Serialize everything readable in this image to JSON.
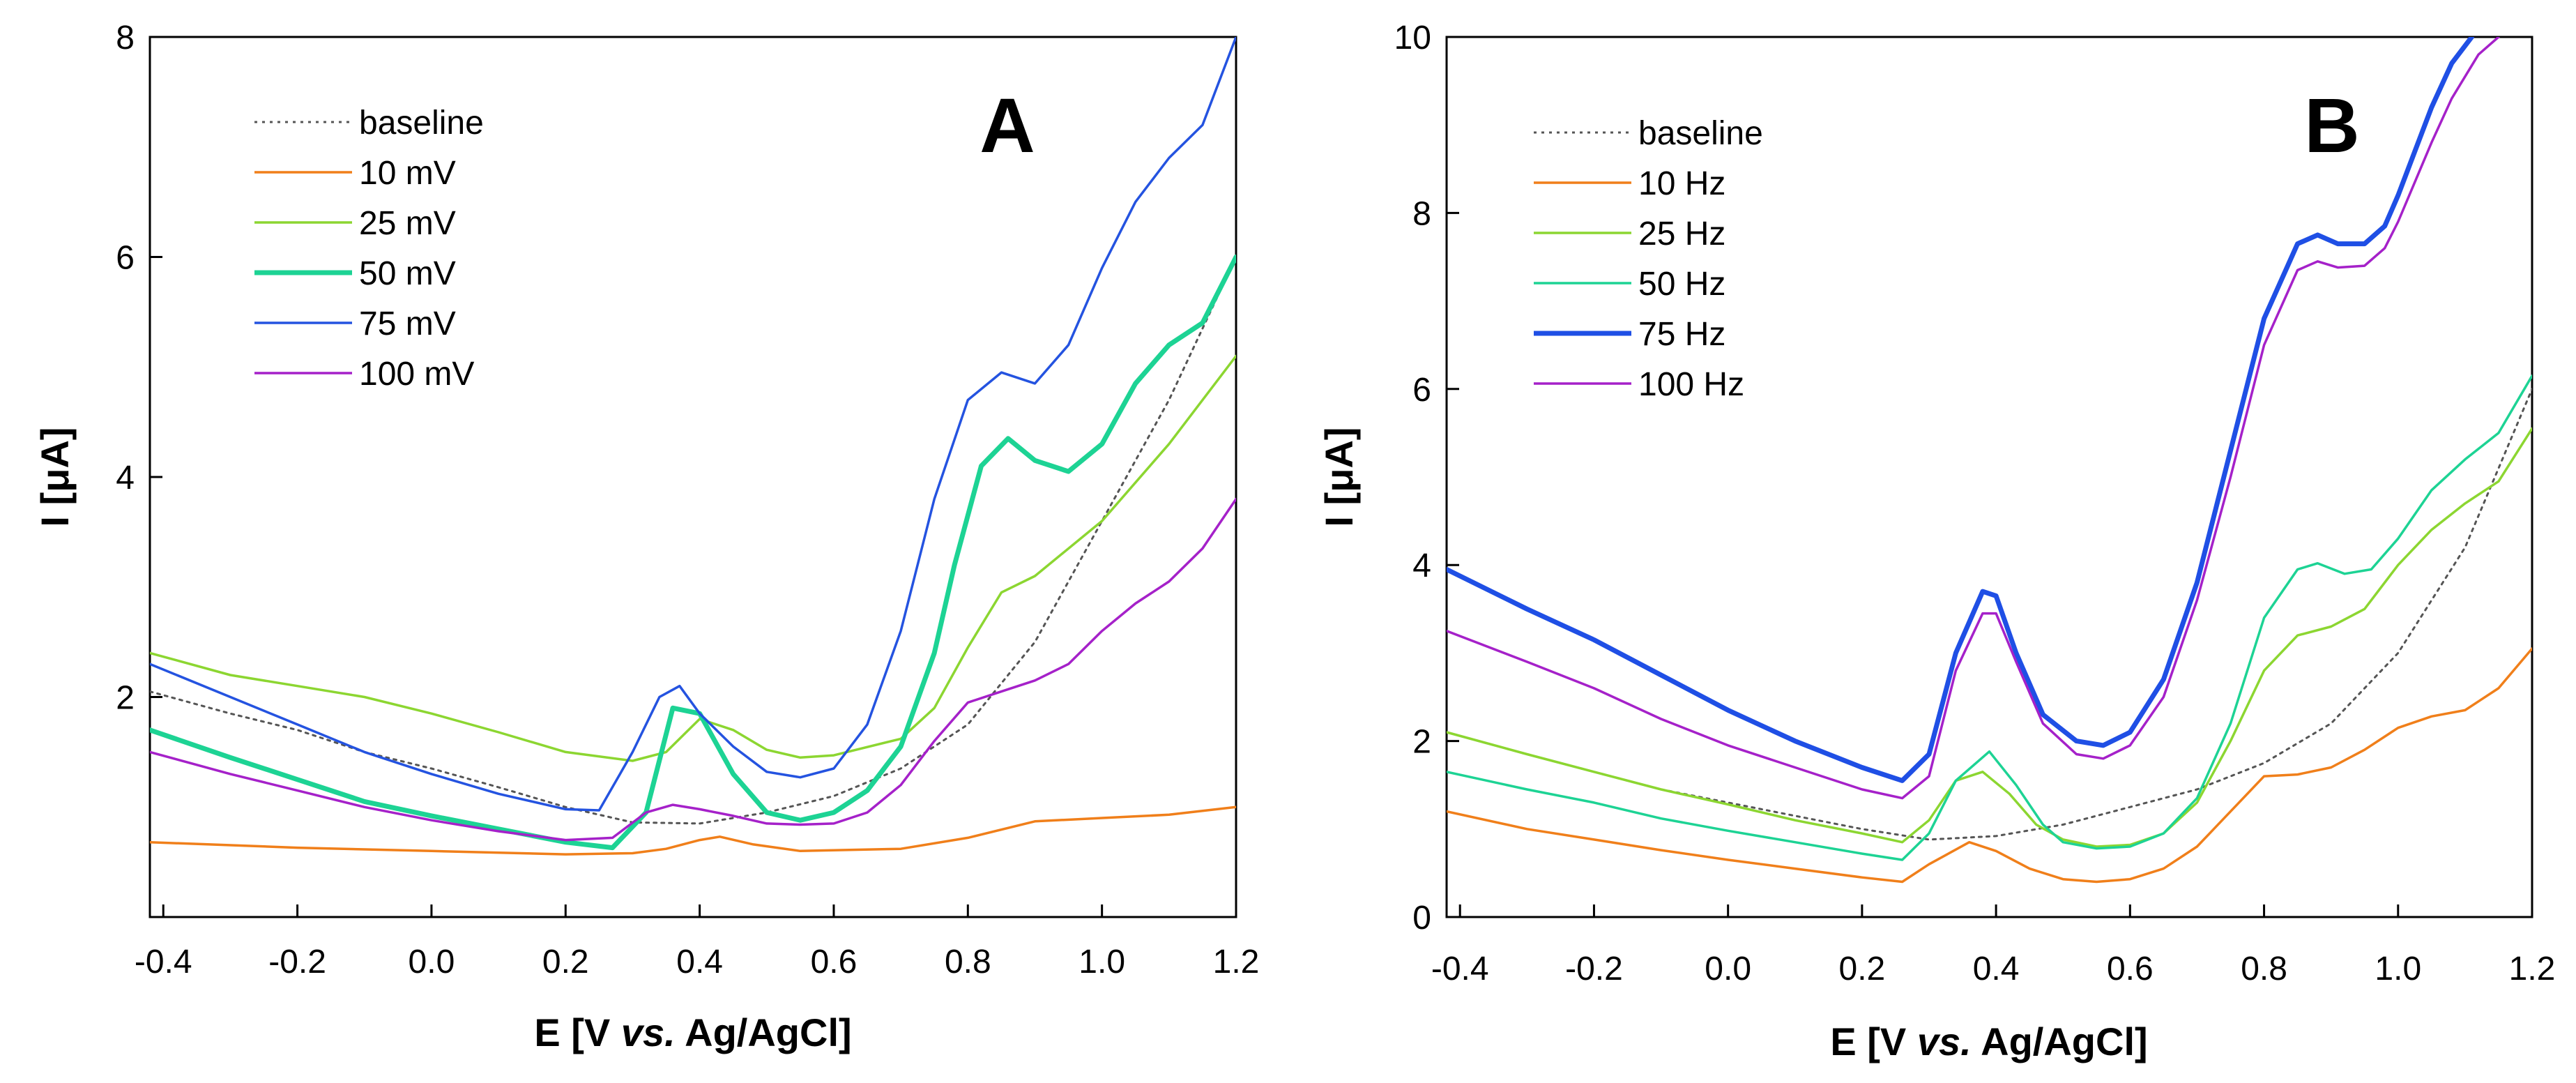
{
  "chart_data": [
    {
      "type": "line",
      "panel_label": "A",
      "xlabel_parts": [
        "E [V ",
        "vs.",
        " Ag/AgCl]"
      ],
      "ylabel": "I [μA]",
      "xlim": [
        -0.42,
        1.2
      ],
      "ylim": [
        0,
        8
      ],
      "xticks": [
        -0.4,
        -0.2,
        0.0,
        0.2,
        0.4,
        0.6,
        0.8,
        1.0,
        1.2
      ],
      "xtick_labels": [
        "-0.4",
        "-0.2",
        "0.0",
        "0.2",
        "0.4",
        "0.6",
        "0.8",
        "1.0",
        "1.2"
      ],
      "yticks": [
        2,
        4,
        6,
        8
      ],
      "ytick_labels": [
        "2",
        "4",
        "6",
        "8"
      ],
      "legend_position": "top-left",
      "series": [
        {
          "name": "baseline",
          "color": "#555555",
          "dashed": true,
          "width": "normal",
          "x": [
            -0.42,
            -0.3,
            -0.2,
            -0.1,
            0.0,
            0.1,
            0.2,
            0.3,
            0.4,
            0.5,
            0.6,
            0.7,
            0.8,
            0.9,
            1.0,
            1.1,
            1.2
          ],
          "y": [
            2.05,
            1.85,
            1.7,
            1.5,
            1.35,
            1.18,
            1.0,
            0.86,
            0.85,
            0.95,
            1.1,
            1.35,
            1.75,
            2.5,
            3.6,
            4.7,
            6.0
          ]
        },
        {
          "name": "10 mV",
          "color": "#f07f1a",
          "dashed": false,
          "width": "normal",
          "x": [
            -0.42,
            -0.2,
            0.0,
            0.2,
            0.3,
            0.35,
            0.4,
            0.43,
            0.48,
            0.55,
            0.7,
            0.8,
            0.9,
            1.0,
            1.1,
            1.2
          ],
          "y": [
            0.68,
            0.63,
            0.6,
            0.57,
            0.58,
            0.62,
            0.7,
            0.73,
            0.66,
            0.6,
            0.62,
            0.72,
            0.87,
            0.9,
            0.93,
            1.0
          ]
        },
        {
          "name": "25 mV",
          "color": "#8cd631",
          "dashed": false,
          "width": "normal",
          "x": [
            -0.42,
            -0.3,
            -0.2,
            -0.1,
            0.0,
            0.1,
            0.2,
            0.3,
            0.35,
            0.4,
            0.45,
            0.5,
            0.55,
            0.6,
            0.7,
            0.75,
            0.8,
            0.85,
            0.9,
            1.0,
            1.1,
            1.2
          ],
          "y": [
            2.4,
            2.2,
            2.1,
            2.0,
            1.85,
            1.68,
            1.5,
            1.42,
            1.5,
            1.8,
            1.7,
            1.52,
            1.45,
            1.47,
            1.62,
            1.9,
            2.45,
            2.95,
            3.1,
            3.6,
            4.3,
            5.1
          ]
        },
        {
          "name": "50 mV",
          "color": "#1dd394",
          "dashed": false,
          "width": "bold",
          "x": [
            -0.42,
            -0.3,
            -0.2,
            -0.1,
            0.0,
            0.1,
            0.2,
            0.27,
            0.32,
            0.36,
            0.4,
            0.45,
            0.5,
            0.55,
            0.6,
            0.65,
            0.7,
            0.75,
            0.78,
            0.82,
            0.86,
            0.9,
            0.95,
            1.0,
            1.05,
            1.1,
            1.15,
            1.2
          ],
          "y": [
            1.7,
            1.45,
            1.25,
            1.05,
            0.92,
            0.8,
            0.68,
            0.63,
            0.95,
            1.9,
            1.85,
            1.3,
            0.95,
            0.88,
            0.95,
            1.15,
            1.55,
            2.4,
            3.2,
            4.1,
            4.35,
            4.15,
            4.05,
            4.3,
            4.85,
            5.2,
            5.4,
            6.0
          ]
        },
        {
          "name": "75 mV",
          "color": "#2453e0",
          "dashed": false,
          "width": "normal",
          "x": [
            -0.42,
            -0.3,
            -0.2,
            -0.1,
            0.0,
            0.1,
            0.2,
            0.25,
            0.3,
            0.34,
            0.37,
            0.4,
            0.45,
            0.5,
            0.55,
            0.6,
            0.65,
            0.7,
            0.75,
            0.8,
            0.85,
            0.9,
            0.95,
            1.0,
            1.05,
            1.1,
            1.15,
            1.2
          ],
          "y": [
            2.3,
            2.0,
            1.75,
            1.5,
            1.3,
            1.12,
            0.98,
            0.97,
            1.5,
            2.0,
            2.1,
            1.85,
            1.55,
            1.32,
            1.27,
            1.35,
            1.75,
            2.6,
            3.8,
            4.7,
            4.95,
            4.85,
            5.2,
            5.9,
            6.5,
            6.9,
            7.2,
            8.0
          ]
        },
        {
          "name": "100 mV",
          "color": "#a521c9",
          "dashed": false,
          "width": "normal",
          "x": [
            -0.42,
            -0.3,
            -0.2,
            -0.1,
            0.0,
            0.1,
            0.2,
            0.27,
            0.32,
            0.36,
            0.4,
            0.45,
            0.5,
            0.55,
            0.6,
            0.65,
            0.7,
            0.75,
            0.8,
            0.85,
            0.9,
            0.95,
            1.0,
            1.05,
            1.1,
            1.15,
            1.2
          ],
          "y": [
            1.5,
            1.3,
            1.15,
            1.0,
            0.88,
            0.78,
            0.7,
            0.72,
            0.95,
            1.02,
            0.98,
            0.92,
            0.85,
            0.84,
            0.85,
            0.95,
            1.2,
            1.6,
            1.95,
            2.05,
            2.15,
            2.3,
            2.6,
            2.85,
            3.05,
            3.35,
            3.8
          ]
        }
      ]
    },
    {
      "type": "line",
      "panel_label": "B",
      "xlabel_parts": [
        "E [V ",
        "vs.",
        " Ag/AgCl]"
      ],
      "ylabel": "I [μA]",
      "xlim": [
        -0.42,
        1.2
      ],
      "ylim": [
        0,
        10
      ],
      "xticks": [
        -0.4,
        -0.2,
        0.0,
        0.2,
        0.4,
        0.6,
        0.8,
        1.0,
        1.2
      ],
      "xtick_labels": [
        "-0.4",
        "-0.2",
        "0.0",
        "0.2",
        "0.4",
        "0.6",
        "0.8",
        "1.0",
        "1.2"
      ],
      "yticks": [
        0,
        2,
        4,
        6,
        8,
        10
      ],
      "ytick_labels": [
        "0",
        "2",
        "4",
        "6",
        "8",
        "10"
      ],
      "legend_position": "top-left",
      "series": [
        {
          "name": "baseline",
          "color": "#555555",
          "dashed": true,
          "width": "normal",
          "x": [
            -0.42,
            -0.3,
            -0.2,
            -0.1,
            0.0,
            0.1,
            0.2,
            0.3,
            0.4,
            0.5,
            0.6,
            0.7,
            0.8,
            0.9,
            1.0,
            1.1,
            1.2
          ],
          "y": [
            2.1,
            1.85,
            1.65,
            1.45,
            1.3,
            1.15,
            1.0,
            0.88,
            0.92,
            1.05,
            1.25,
            1.45,
            1.75,
            2.2,
            3.0,
            4.2,
            6.0
          ]
        },
        {
          "name": "10 Hz",
          "color": "#f07f1a",
          "dashed": false,
          "width": "normal",
          "x": [
            -0.42,
            -0.3,
            -0.2,
            -0.1,
            0.0,
            0.1,
            0.2,
            0.26,
            0.3,
            0.36,
            0.4,
            0.45,
            0.5,
            0.55,
            0.6,
            0.65,
            0.7,
            0.75,
            0.8,
            0.85,
            0.9,
            0.95,
            1.0,
            1.05,
            1.1,
            1.15,
            1.2
          ],
          "y": [
            1.2,
            1.0,
            0.88,
            0.76,
            0.65,
            0.55,
            0.45,
            0.4,
            0.6,
            0.85,
            0.75,
            0.55,
            0.43,
            0.4,
            0.43,
            0.55,
            0.8,
            1.2,
            1.6,
            1.62,
            1.7,
            1.9,
            2.15,
            2.28,
            2.35,
            2.6,
            3.05
          ]
        },
        {
          "name": "25 Hz",
          "color": "#8cd631",
          "dashed": false,
          "width": "normal",
          "x": [
            -0.42,
            -0.3,
            -0.2,
            -0.1,
            0.0,
            0.1,
            0.2,
            0.26,
            0.3,
            0.34,
            0.38,
            0.42,
            0.46,
            0.5,
            0.55,
            0.6,
            0.65,
            0.7,
            0.75,
            0.8,
            0.85,
            0.9,
            0.95,
            1.0,
            1.05,
            1.1,
            1.15,
            1.2
          ],
          "y": [
            2.1,
            1.85,
            1.65,
            1.45,
            1.28,
            1.1,
            0.95,
            0.85,
            1.1,
            1.55,
            1.65,
            1.4,
            1.05,
            0.88,
            0.8,
            0.82,
            0.95,
            1.3,
            2.0,
            2.8,
            3.2,
            3.3,
            3.5,
            4.0,
            4.4,
            4.7,
            4.95,
            5.55
          ]
        },
        {
          "name": "50 Hz",
          "color": "#1dd394",
          "dashed": false,
          "width": "normal",
          "x": [
            -0.42,
            -0.3,
            -0.2,
            -0.1,
            0.0,
            0.1,
            0.2,
            0.26,
            0.3,
            0.34,
            0.39,
            0.43,
            0.47,
            0.5,
            0.55,
            0.6,
            0.65,
            0.7,
            0.75,
            0.8,
            0.85,
            0.88,
            0.92,
            0.96,
            1.0,
            1.05,
            1.1,
            1.15,
            1.2
          ],
          "y": [
            1.65,
            1.45,
            1.3,
            1.12,
            0.98,
            0.85,
            0.72,
            0.65,
            0.95,
            1.55,
            1.88,
            1.5,
            1.05,
            0.85,
            0.78,
            0.8,
            0.95,
            1.35,
            2.2,
            3.4,
            3.95,
            4.02,
            3.9,
            3.95,
            4.3,
            4.85,
            5.2,
            5.5,
            6.15
          ]
        },
        {
          "name": "75 Hz",
          "color": "#1f4fe5",
          "dashed": false,
          "width": "bold",
          "x": [
            -0.42,
            -0.3,
            -0.2,
            -0.1,
            0.0,
            0.1,
            0.2,
            0.26,
            0.3,
            0.34,
            0.38,
            0.4,
            0.43,
            0.47,
            0.52,
            0.56,
            0.6,
            0.65,
            0.7,
            0.75,
            0.8,
            0.85,
            0.88,
            0.91,
            0.95,
            0.98,
            1.0,
            1.05,
            1.08,
            1.11
          ],
          "y": [
            3.95,
            3.5,
            3.15,
            2.75,
            2.35,
            2.0,
            1.7,
            1.55,
            1.85,
            3.0,
            3.7,
            3.65,
            3.0,
            2.3,
            2.0,
            1.95,
            2.1,
            2.7,
            3.8,
            5.3,
            6.8,
            7.65,
            7.75,
            7.65,
            7.65,
            7.85,
            8.2,
            9.2,
            9.7,
            10.0
          ]
        },
        {
          "name": "100 Hz",
          "color": "#a521c9",
          "dashed": false,
          "width": "normal",
          "x": [
            -0.42,
            -0.3,
            -0.2,
            -0.1,
            0.0,
            0.1,
            0.2,
            0.26,
            0.3,
            0.34,
            0.38,
            0.4,
            0.43,
            0.47,
            0.52,
            0.56,
            0.6,
            0.65,
            0.7,
            0.75,
            0.8,
            0.85,
            0.88,
            0.91,
            0.95,
            0.98,
            1.0,
            1.05,
            1.08,
            1.12,
            1.15
          ],
          "y": [
            3.25,
            2.9,
            2.6,
            2.25,
            1.95,
            1.7,
            1.45,
            1.35,
            1.6,
            2.8,
            3.45,
            3.45,
            2.9,
            2.2,
            1.85,
            1.8,
            1.95,
            2.5,
            3.6,
            5.0,
            6.5,
            7.35,
            7.45,
            7.38,
            7.4,
            7.6,
            7.9,
            8.8,
            9.3,
            9.8,
            10.0
          ]
        }
      ]
    }
  ]
}
